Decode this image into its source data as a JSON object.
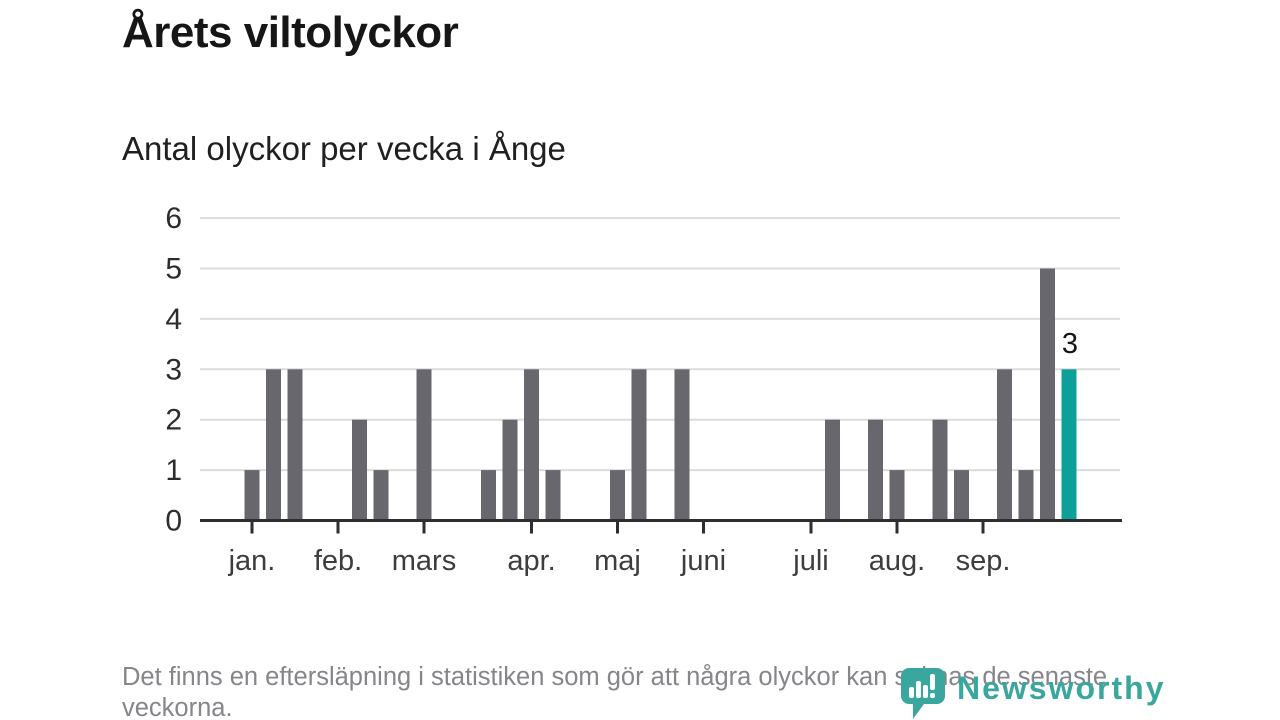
{
  "header": {
    "title": "Årets viltolyckor",
    "subtitle": "Antal olyckor per vecka i Ånge"
  },
  "chart_data": {
    "type": "bar",
    "title": "Årets viltolyckor",
    "subtitle": "Antal olyckor per vecka i Ånge",
    "x_unit": "vecka",
    "first_week": 1,
    "values": [
      1,
      3,
      3,
      0,
      0,
      2,
      1,
      0,
      3,
      0,
      0,
      1,
      2,
      3,
      1,
      0,
      0,
      1,
      3,
      0,
      3,
      0,
      0,
      0,
      0,
      0,
      0,
      2,
      0,
      2,
      1,
      0,
      2,
      1,
      0,
      3,
      1,
      5,
      3
    ],
    "highlight_index": 38,
    "highlight_label": "3",
    "yticks": [
      0,
      1,
      2,
      3,
      4,
      5,
      6
    ],
    "ylim": [
      0,
      6
    ],
    "grid": true,
    "legend": false,
    "month_ticks": [
      {
        "label": "jan.",
        "week": 1
      },
      {
        "label": "feb.",
        "week": 5
      },
      {
        "label": "mars",
        "week": 9
      },
      {
        "label": "apr.",
        "week": 14
      },
      {
        "label": "maj",
        "week": 18
      },
      {
        "label": "juni",
        "week": 22
      },
      {
        "label": "juli",
        "week": 27
      },
      {
        "label": "aug.",
        "week": 31
      },
      {
        "label": "sep.",
        "week": 35
      }
    ],
    "colors": {
      "bar": "#67676d",
      "highlight": "#0da098",
      "gridline": "#dcdcdd",
      "axis": "#2e2e31",
      "tick_label": "#2d2d2d",
      "month_label": "#3d3d40",
      "annotation": "#161616"
    }
  },
  "footer": {
    "note": "Det finns en eftersläpning i statistiken som gör att några olyckor kan saknas de senaste veckorna."
  },
  "branding": {
    "name": "Newsworthy",
    "color": "#3aa79e"
  }
}
